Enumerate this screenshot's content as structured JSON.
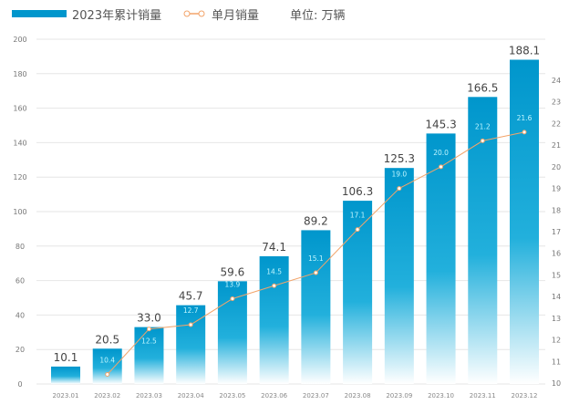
{
  "legend": {
    "bar_label": "2023年累计销量",
    "line_label": "单月销量",
    "unit": "单位: 万辆"
  },
  "colors": {
    "bar_top": "#0096cc",
    "bar_bottom": "#ffffff",
    "line": "#f2a46a",
    "label_line": "#bff6ff"
  },
  "chart_data": {
    "type": "bar+line",
    "categories": [
      "2023.01",
      "2023.02",
      "2023.03",
      "2023.04",
      "2023.05",
      "2023.06",
      "2023.07",
      "2023.08",
      "2023.09",
      "2023.10",
      "2023.11",
      "2023.12"
    ],
    "series": [
      {
        "name": "2023年累计销量",
        "type": "bar",
        "axis": "left",
        "values": [
          10.1,
          20.5,
          33.0,
          45.7,
          59.6,
          74.1,
          89.2,
          106.3,
          125.3,
          145.3,
          166.5,
          188.1
        ],
        "labels": [
          "10.1",
          "20.5",
          "33.0",
          "45.7",
          "59.6",
          "74.1",
          "89.2",
          "106.3",
          "125.3",
          "145.3",
          "166.5",
          "188.1"
        ]
      },
      {
        "name": "单月销量",
        "type": "line",
        "axis": "right",
        "values": [
          null,
          10.4,
          12.5,
          12.7,
          13.9,
          14.5,
          15.1,
          17.1,
          19.0,
          20.0,
          21.2,
          21.6
        ],
        "labels": [
          "",
          "10.4",
          "12.5",
          "12.7",
          "13.9",
          "14.5",
          "15.1",
          "17.1",
          "19.0",
          "20.0",
          "21.2",
          "21.6"
        ]
      }
    ],
    "y_left": {
      "range": [
        0,
        200
      ],
      "ticks": [
        "0",
        "20",
        "40",
        "60",
        "80",
        "100",
        "120",
        "140",
        "160",
        "180",
        "200"
      ]
    },
    "y_right": {
      "range": [
        10,
        24
      ],
      "ticks": [
        "10",
        "11",
        "12",
        "13",
        "14",
        "15",
        "16",
        "17",
        "18",
        "19",
        "20",
        "21",
        "22",
        "23",
        "24"
      ]
    },
    "grid": true,
    "legend_position": "top-left"
  }
}
